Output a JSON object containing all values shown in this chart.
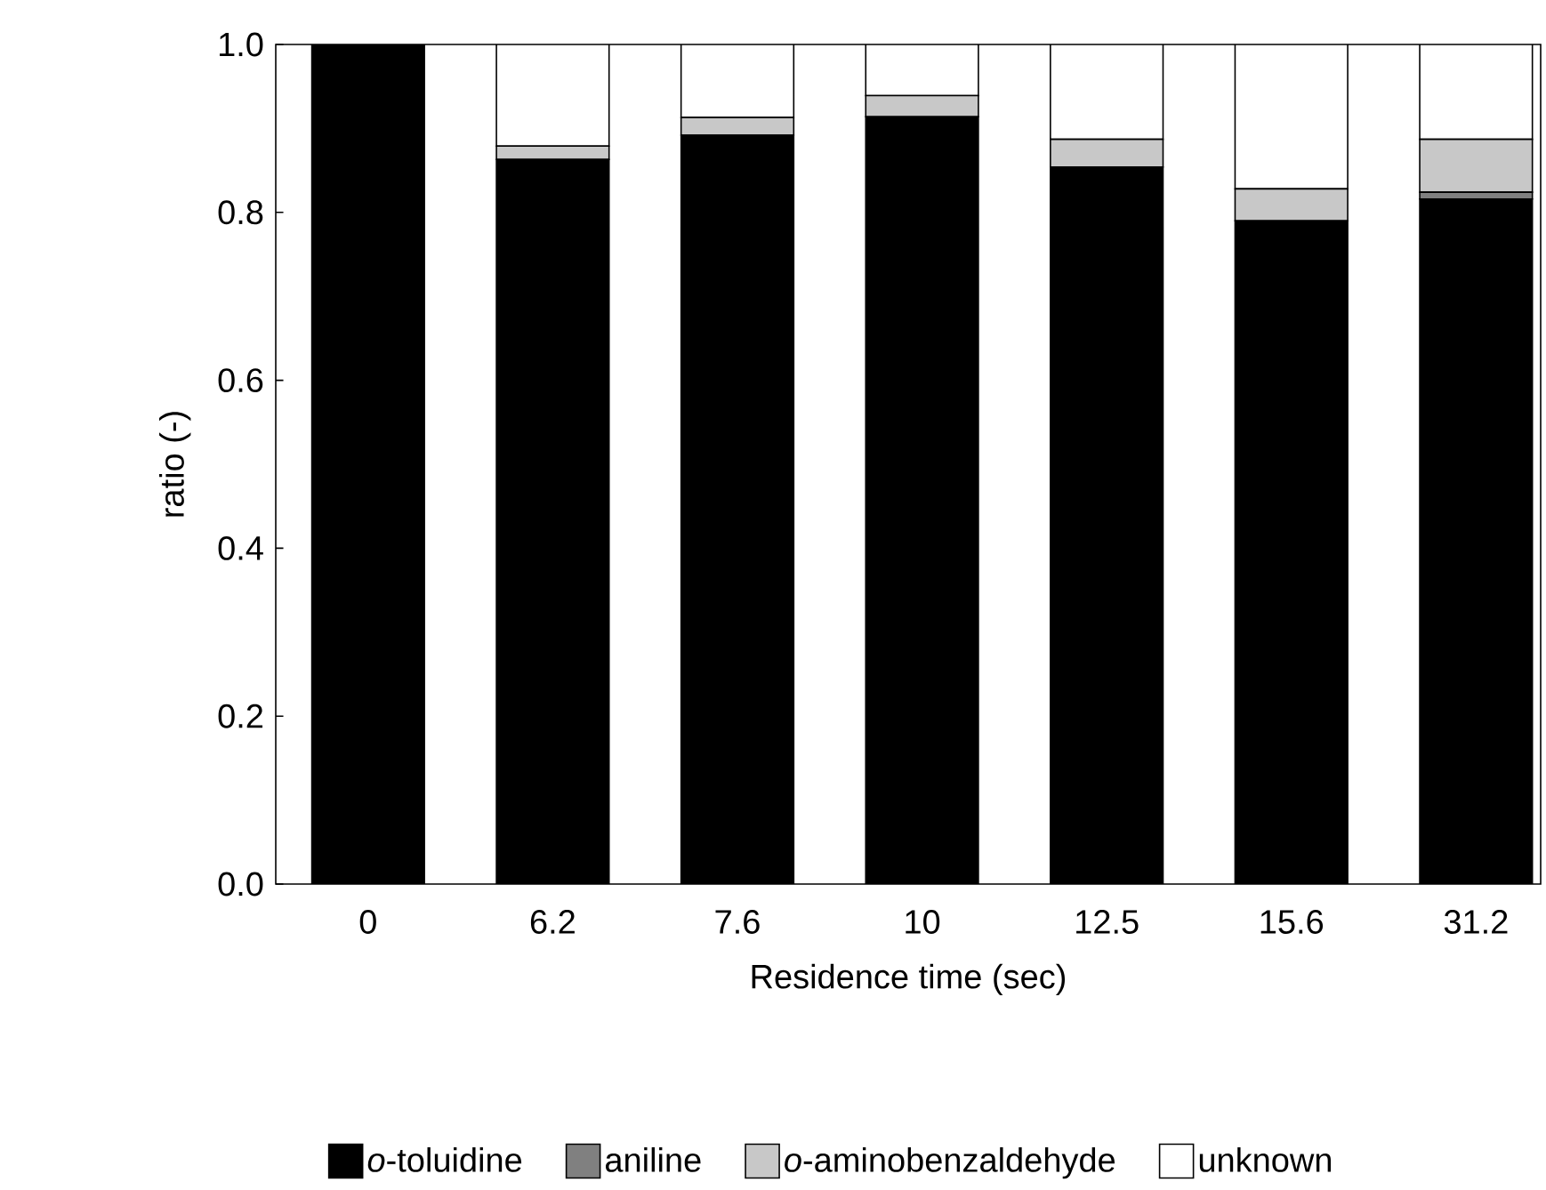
{
  "chart_data": {
    "type": "bar",
    "stacked": true,
    "xlabel": "Residence time (sec)",
    "ylabel": "ratio (-)",
    "categories": [
      "0",
      "6.2",
      "7.6",
      "10",
      "12.5",
      "15.6",
      "31.2"
    ],
    "series": [
      {
        "name": "*o*-toluidine",
        "color": "#000000",
        "values": [
          1.0,
          0.863,
          0.892,
          0.914,
          0.854,
          0.79,
          0.816
        ]
      },
      {
        "name": "aniline",
        "color": "#808080",
        "values": [
          0,
          0,
          0,
          0,
          0,
          0,
          0.008
        ]
      },
      {
        "name": "*o*-aminobenzaldehyde",
        "color": "#c8c8c8",
        "values": [
          0,
          0.016,
          0.021,
          0.025,
          0.033,
          0.038,
          0.063
        ]
      },
      {
        "name": "unknown",
        "color": "#ffffff",
        "values": [
          0,
          0.121,
          0.087,
          0.061,
          0.113,
          0.172,
          0.113
        ]
      }
    ],
    "ylim": [
      0,
      1.0
    ],
    "yticks": [
      {
        "value": 0,
        "label": "0.0"
      },
      {
        "value": 0.2,
        "label": "0.2"
      },
      {
        "value": 0.4,
        "label": "0.4"
      },
      {
        "value": 0.6,
        "label": "0.6"
      },
      {
        "value": 0.8,
        "label": "0.8"
      },
      {
        "value": 1.0,
        "label": "1.0"
      }
    ],
    "grid": false,
    "legend": "bottom"
  }
}
